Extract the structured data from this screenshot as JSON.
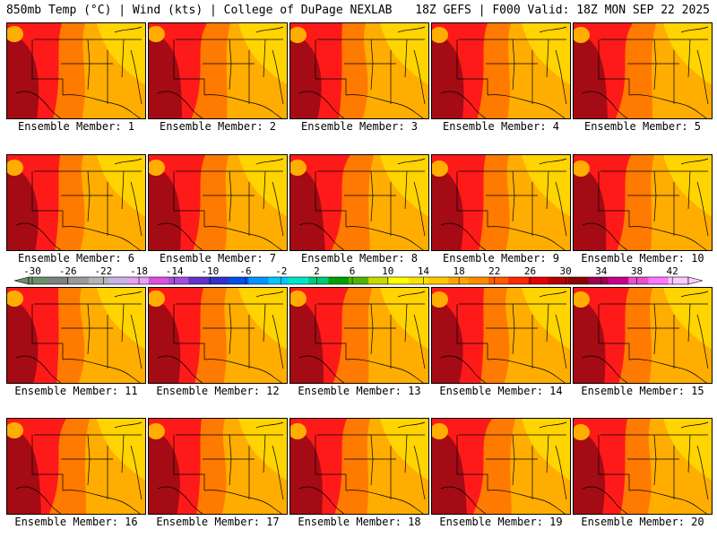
{
  "header": {
    "title_left": "850mb Temp (°C) | Wind (kts) | College of DuPage NEXLAB",
    "title_right": "18Z GEFS | F000 Valid: 18Z MON SEP 22 2025"
  },
  "colors": {
    "far_west": "#a40b14",
    "west": "#ff1a1a",
    "central": "#ff7a00",
    "east": "#ffad00",
    "northeast": "#ffd400",
    "land_lines": "#000000"
  },
  "chart_data": {
    "type": "heatmap",
    "title": "850mb Temp (°C) | Wind (kts)",
    "variable": "850mb Temperature",
    "units": "°C",
    "model": "18Z GEFS",
    "forecast_hour": "F000",
    "valid": "18Z MON SEP 22 2025",
    "panel_label_prefix": "Ensemble Member: ",
    "members": [
      1,
      2,
      3,
      4,
      5,
      6,
      7,
      8,
      9,
      10,
      11,
      12,
      13,
      14,
      15,
      16,
      17,
      18,
      19,
      20
    ],
    "colorbar": {
      "tick_labels": [
        "-30",
        "-26",
        "-22",
        "-18",
        "-14",
        "-10",
        "-6",
        "-2",
        "2",
        "6",
        "10",
        "14",
        "18",
        "22",
        "26",
        "30",
        "34",
        "38",
        "42"
      ],
      "colors": [
        "#6e8f6e",
        "#808080",
        "#9a9a9a",
        "#b4b4b4",
        "#c8b4e6",
        "#e6a0f0",
        "#dc50dc",
        "#a050dc",
        "#6432c8",
        "#3232c8",
        "#0050e6",
        "#0096ff",
        "#00c8ff",
        "#00e6c8",
        "#00c878",
        "#00a000",
        "#50b400",
        "#c8dc00",
        "#ffff00",
        "#ffe100",
        "#ffc800",
        "#ffa500",
        "#ff8c00",
        "#ff5a00",
        "#ff2800",
        "#e60000",
        "#b40000",
        "#8c0000",
        "#a00050",
        "#c8008c",
        "#e650c8",
        "#ff78ff",
        "#ffc8ff"
      ]
    }
  }
}
